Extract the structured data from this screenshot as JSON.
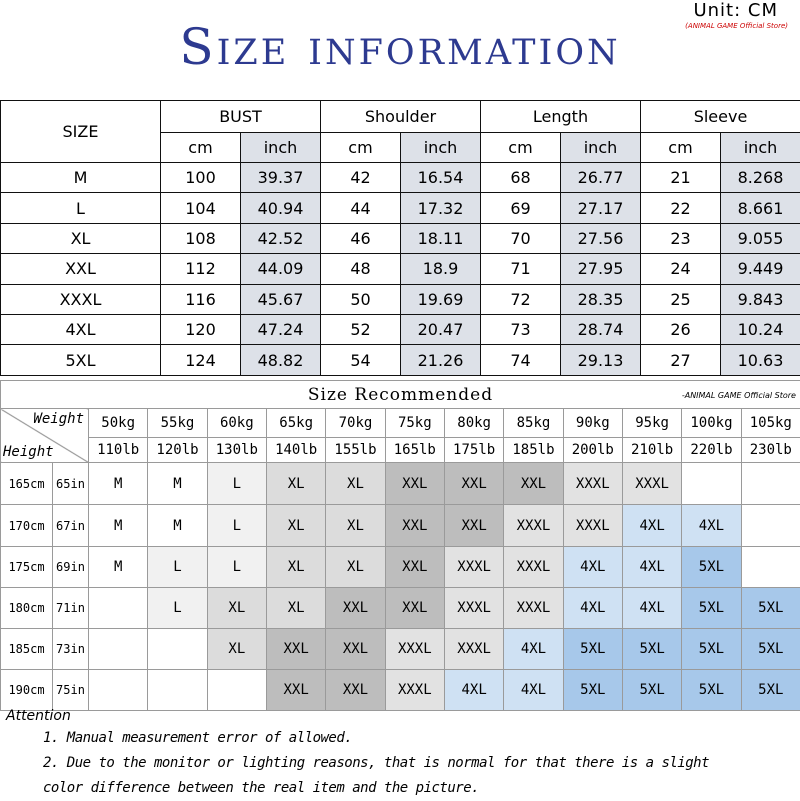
{
  "header": {
    "unit": "Unit: CM",
    "unit_store": "(ANIMAL GAME Official Store)",
    "title": "Size information"
  },
  "size_table": {
    "size_header": "SIZE",
    "groups": [
      "BUST",
      "Shoulder",
      "Length",
      "Sleeve"
    ],
    "subheaders": [
      "cm",
      "inch"
    ],
    "rows": [
      [
        "M",
        "100",
        "39.37",
        "42",
        "16.54",
        "68",
        "26.77",
        "21",
        "8.268"
      ],
      [
        "L",
        "104",
        "40.94",
        "44",
        "17.32",
        "69",
        "27.17",
        "22",
        "8.661"
      ],
      [
        "XL",
        "108",
        "42.52",
        "46",
        "18.11",
        "70",
        "27.56",
        "23",
        "9.055"
      ],
      [
        "XXL",
        "112",
        "44.09",
        "48",
        "18.9",
        "71",
        "27.95",
        "24",
        "9.449"
      ],
      [
        "XXXL",
        "116",
        "45.67",
        "50",
        "19.69",
        "72",
        "28.35",
        "25",
        "9.843"
      ],
      [
        "4XL",
        "120",
        "47.24",
        "52",
        "20.47",
        "73",
        "28.74",
        "26",
        "10.24"
      ],
      [
        "5XL",
        "124",
        "48.82",
        "54",
        "21.26",
        "74",
        "29.13",
        "27",
        "10.63"
      ]
    ]
  },
  "recommend": {
    "title": "Size Recommended",
    "store": "-ANIMAL GAME Official Store",
    "weight_label": "Weight",
    "height_label": "Height",
    "weights_kg": [
      "50kg",
      "55kg",
      "60kg",
      "65kg",
      "70kg",
      "75kg",
      "80kg",
      "85kg",
      "90kg",
      "95kg",
      "100kg",
      "105kg"
    ],
    "weights_lb": [
      "110lb",
      "120lb",
      "130lb",
      "140lb",
      "155lb",
      "165lb",
      "175lb",
      "185lb",
      "200lb",
      "210lb",
      "220lb",
      "230lb"
    ],
    "heights": [
      [
        "165cm",
        "65in"
      ],
      [
        "170cm",
        "67in"
      ],
      [
        "175cm",
        "69in"
      ],
      [
        "180cm",
        "71in"
      ],
      [
        "185cm",
        "73in"
      ],
      [
        "190cm",
        "75in"
      ]
    ],
    "cells": [
      [
        "M",
        "M",
        "L",
        "XL",
        "XL",
        "XXL",
        "XXL",
        "XXL",
        "XXXL",
        "XXXL",
        null,
        null
      ],
      [
        "M",
        "M",
        "L",
        "XL",
        "XL",
        "XXL",
        "XXL",
        "XXXL",
        "XXXL",
        "4XL",
        "4XL",
        null
      ],
      [
        "M",
        "L",
        "L",
        "XL",
        "XL",
        "XXL",
        "XXXL",
        "XXXL",
        "4XL",
        "4XL",
        "5XL",
        null
      ],
      [
        null,
        "L",
        "XL",
        "XL",
        "XXL",
        "XXL",
        "XXXL",
        "XXXL",
        "4XL",
        "4XL",
        "5XL",
        "5XL"
      ],
      [
        null,
        null,
        "XL",
        "XXL",
        "XXL",
        "XXXL",
        "XXXL",
        "4XL",
        "5XL",
        "5XL",
        "5XL",
        "5XL"
      ],
      [
        null,
        null,
        null,
        "XXL",
        "XXL",
        "XXXL",
        "4XL",
        "4XL",
        "5XL",
        "5XL",
        "5XL",
        "5XL"
      ]
    ],
    "size_colors": {
      "M": "#ffffff",
      "L": "#f1f1f1",
      "XL": "#dcdcdc",
      "XXL": "#bdbdbd",
      "XXXL": "#e2e2e2",
      "4XL": "#cfe1f3",
      "5XL": "#a7c8ea"
    }
  },
  "attention": {
    "title": "Attention",
    "notes": [
      "1. Manual measurement error of allowed.",
      "2.  Due to the monitor or lighting reasons, that is normal for that there is a slight color difference between the real item and the picture."
    ]
  }
}
